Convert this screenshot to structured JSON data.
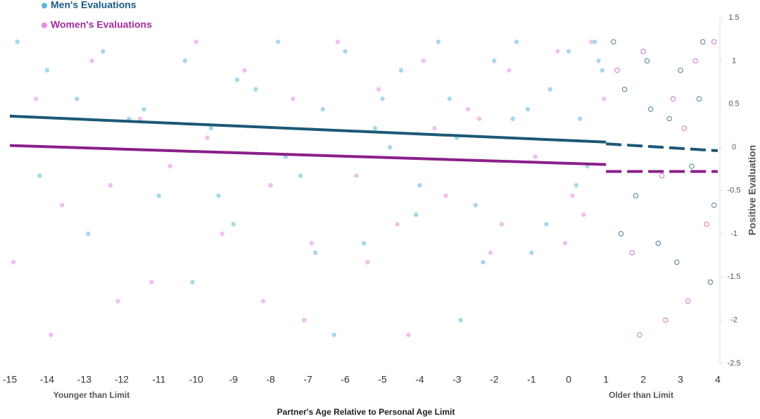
{
  "chart_data": {
    "type": "scatter",
    "x_label": "Partner's Age Relative to Personal Age Limit",
    "y_label": "Positive Evaluation",
    "annotations": [
      "Younger than Limit",
      "Older than Limit"
    ],
    "xlim": [
      -15,
      4
    ],
    "xticks": [
      -15,
      -14,
      -13,
      -12,
      -11,
      -10,
      -9,
      -8,
      -7,
      -6,
      -5,
      -4,
      -3,
      -2,
      -1,
      0,
      1,
      2,
      3,
      4
    ],
    "ylim": [
      -2.5,
      1.5
    ],
    "yticks": [
      1.5,
      1,
      0.5,
      0,
      -0.5,
      -1,
      -1.5,
      -2,
      -2.5
    ],
    "grid": false,
    "legend": "top-left",
    "series": [
      {
        "name": "Men's Evaluations",
        "color": "#5bb8dd",
        "marker": "filled",
        "x": [
          -14.8,
          -14,
          -13.2,
          -12.5,
          -11.8,
          -11,
          -10.3,
          -9.6,
          -9,
          -8.4,
          -7.8,
          -7.2,
          -6.6,
          -6,
          -5.5,
          -5,
          -4.5,
          -4,
          -3.5,
          -3,
          -2.5,
          -2,
          -1.5,
          -1,
          -0.5,
          0,
          0.5,
          0.9,
          -14.2,
          -12.9,
          -11.4,
          -10.1,
          -8.9,
          -7.6,
          -6.3,
          -5.2,
          -4.1,
          -3.2,
          -2.3,
          -1.4,
          -0.6,
          0.3,
          0.8,
          -9.4,
          -6.8,
          -4.8,
          -2.9,
          -1.1,
          0.2,
          0.7
        ],
        "values": [
          1.22,
          0.89,
          0.56,
          1.11,
          0.33,
          -0.56,
          1.0,
          0.22,
          -0.89,
          0.67,
          1.22,
          -0.33,
          0.44,
          1.11,
          -1.11,
          0.56,
          0.89,
          -0.44,
          1.22,
          0.11,
          -0.67,
          1.0,
          0.33,
          -1.22,
          0.67,
          1.11,
          -0.22,
          0.89,
          -0.33,
          -1.0,
          0.44,
          -1.56,
          0.78,
          -0.11,
          -2.17,
          0.22,
          -0.78,
          0.56,
          -1.33,
          1.22,
          -0.89,
          0.33,
          1.0,
          -0.56,
          -1.22,
          0.0,
          -2.0,
          0.44,
          -0.44,
          1.22
        ]
      },
      {
        "name": "Women's Evaluations",
        "color": "#e38be0",
        "marker": "filled",
        "x": [
          -14.9,
          -14.3,
          -13.6,
          -12.8,
          -12.1,
          -11.5,
          -10.7,
          -10,
          -9.3,
          -8.7,
          -8,
          -7.4,
          -6.9,
          -6.2,
          -5.7,
          -5.1,
          -4.6,
          -3.9,
          -3.3,
          -2.7,
          -2.1,
          -1.6,
          -0.9,
          -0.3,
          0.4,
          0.95,
          -13.9,
          -11.2,
          -9.7,
          -7.1,
          -5.4,
          -3.6,
          -1.8,
          -0.1,
          0.6,
          -12.3,
          -8.2,
          -4.3,
          -2.4,
          0.1
        ],
        "values": [
          -1.33,
          0.56,
          -0.67,
          1.0,
          -1.78,
          0.33,
          -0.22,
          1.22,
          -1.0,
          0.89,
          -0.44,
          0.56,
          -1.11,
          1.22,
          -0.33,
          0.67,
          -0.89,
          1.0,
          -0.56,
          0.44,
          -1.22,
          0.89,
          -0.11,
          1.11,
          -0.78,
          0.56,
          -2.17,
          -1.56,
          0.11,
          -2.0,
          -1.33,
          0.22,
          -0.89,
          -1.11,
          1.22,
          -0.44,
          -1.78,
          -2.17,
          0.33,
          -0.56
        ]
      },
      {
        "color": "#1f5f7a",
        "marker": "hollow",
        "x": [
          1.2,
          1.5,
          1.8,
          2.1,
          2.4,
          2.7,
          3.0,
          3.3,
          3.6,
          3.9,
          1.4,
          2.2,
          2.9,
          3.5,
          3.8
        ],
        "values": [
          1.22,
          0.67,
          -0.56,
          1.0,
          -1.11,
          0.33,
          0.89,
          -0.22,
          1.22,
          -0.67,
          -1.0,
          0.44,
          -1.33,
          0.56,
          -1.56
        ]
      },
      {
        "color": "#c050c0",
        "marker": "hollow",
        "x": [
          1.3,
          1.7,
          2.0,
          2.5,
          2.8,
          3.2,
          3.4,
          3.7,
          1.9,
          2.6,
          3.1,
          3.9
        ],
        "values": [
          0.89,
          -1.22,
          1.11,
          -0.33,
          0.56,
          -1.78,
          1.0,
          -0.89,
          -2.17,
          -2.0,
          0.22,
          1.22
        ]
      },
      {
        "type": "line",
        "color": "#1b5876",
        "dash": false,
        "x": [
          -15,
          1
        ],
        "values": [
          0.36,
          0.06
        ]
      },
      {
        "type": "line",
        "color": "#1b5876",
        "dash": true,
        "x": [
          1,
          4
        ],
        "values": [
          0.04,
          -0.04
        ]
      },
      {
        "type": "line",
        "color": "#8b1f8b",
        "dash": false,
        "x": [
          -15,
          1
        ],
        "values": [
          0.02,
          -0.2
        ]
      },
      {
        "type": "line",
        "color": "#8b1f8b",
        "dash": true,
        "x": [
          1,
          4
        ],
        "values": [
          -0.28,
          -0.28
        ]
      }
    ]
  }
}
